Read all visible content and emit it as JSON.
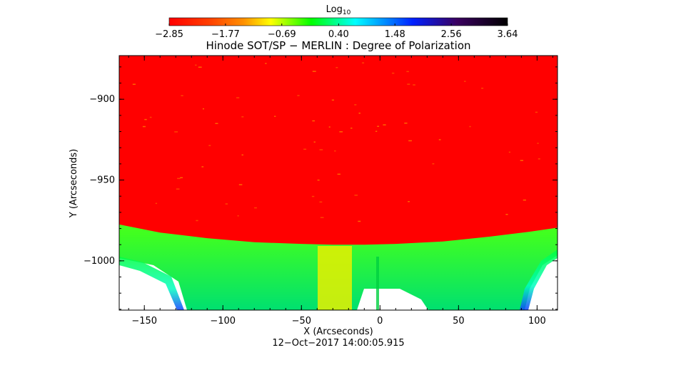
{
  "colorbar": {
    "label_main": "Log",
    "label_sub": "10",
    "ticks": [
      -2.85,
      -1.77,
      -0.69,
      0.4,
      1.48,
      2.56,
      3.64
    ],
    "tick_labels": [
      "−2.85",
      "−1.77",
      "−0.69",
      "0.40",
      "1.48",
      "2.56",
      "3.64"
    ],
    "range": [
      -2.85,
      3.64
    ],
    "colors": [
      "#ff0000",
      "#ff8c00",
      "#ffff00",
      "#00ff00",
      "#00ffff",
      "#0000ff",
      "#3a0060",
      "#000000"
    ]
  },
  "chart_data": {
    "type": "heatmap",
    "title": "Hinode SOT/SP − MERLIN : Degree of Polarization",
    "xlabel": "X (Arcseconds)",
    "ylabel": "Y (Arcseconds)",
    "timestamp": "12−Oct−2017 14:00:05.915",
    "xlim": [
      -166,
      113
    ],
    "ylim": [
      -1030.5,
      -873
    ],
    "xticks": [
      -150,
      -100,
      -50,
      0,
      50,
      100
    ],
    "xtick_labels": [
      "−150",
      "−100",
      "−50",
      "0",
      "50",
      "100"
    ],
    "yticks": [
      -1000,
      -950,
      -900
    ],
    "ytick_labels": [
      "−1000",
      "−950",
      "−900"
    ],
    "limb": {
      "x": [
        -166,
        -140,
        -110,
        -80,
        -50,
        -30,
        -10,
        10,
        40,
        70,
        95,
        113
      ],
      "y": [
        -977.5,
        -982.5,
        -986,
        -988.5,
        -989.5,
        -990,
        -990,
        -989.5,
        -988,
        -985,
        -982,
        -979.5
      ]
    },
    "regions": {
      "disk_value": -2.85,
      "offlimb_near_value": -1.0,
      "offlimb_far_value": 0.8,
      "background": "white"
    },
    "grid": false
  }
}
